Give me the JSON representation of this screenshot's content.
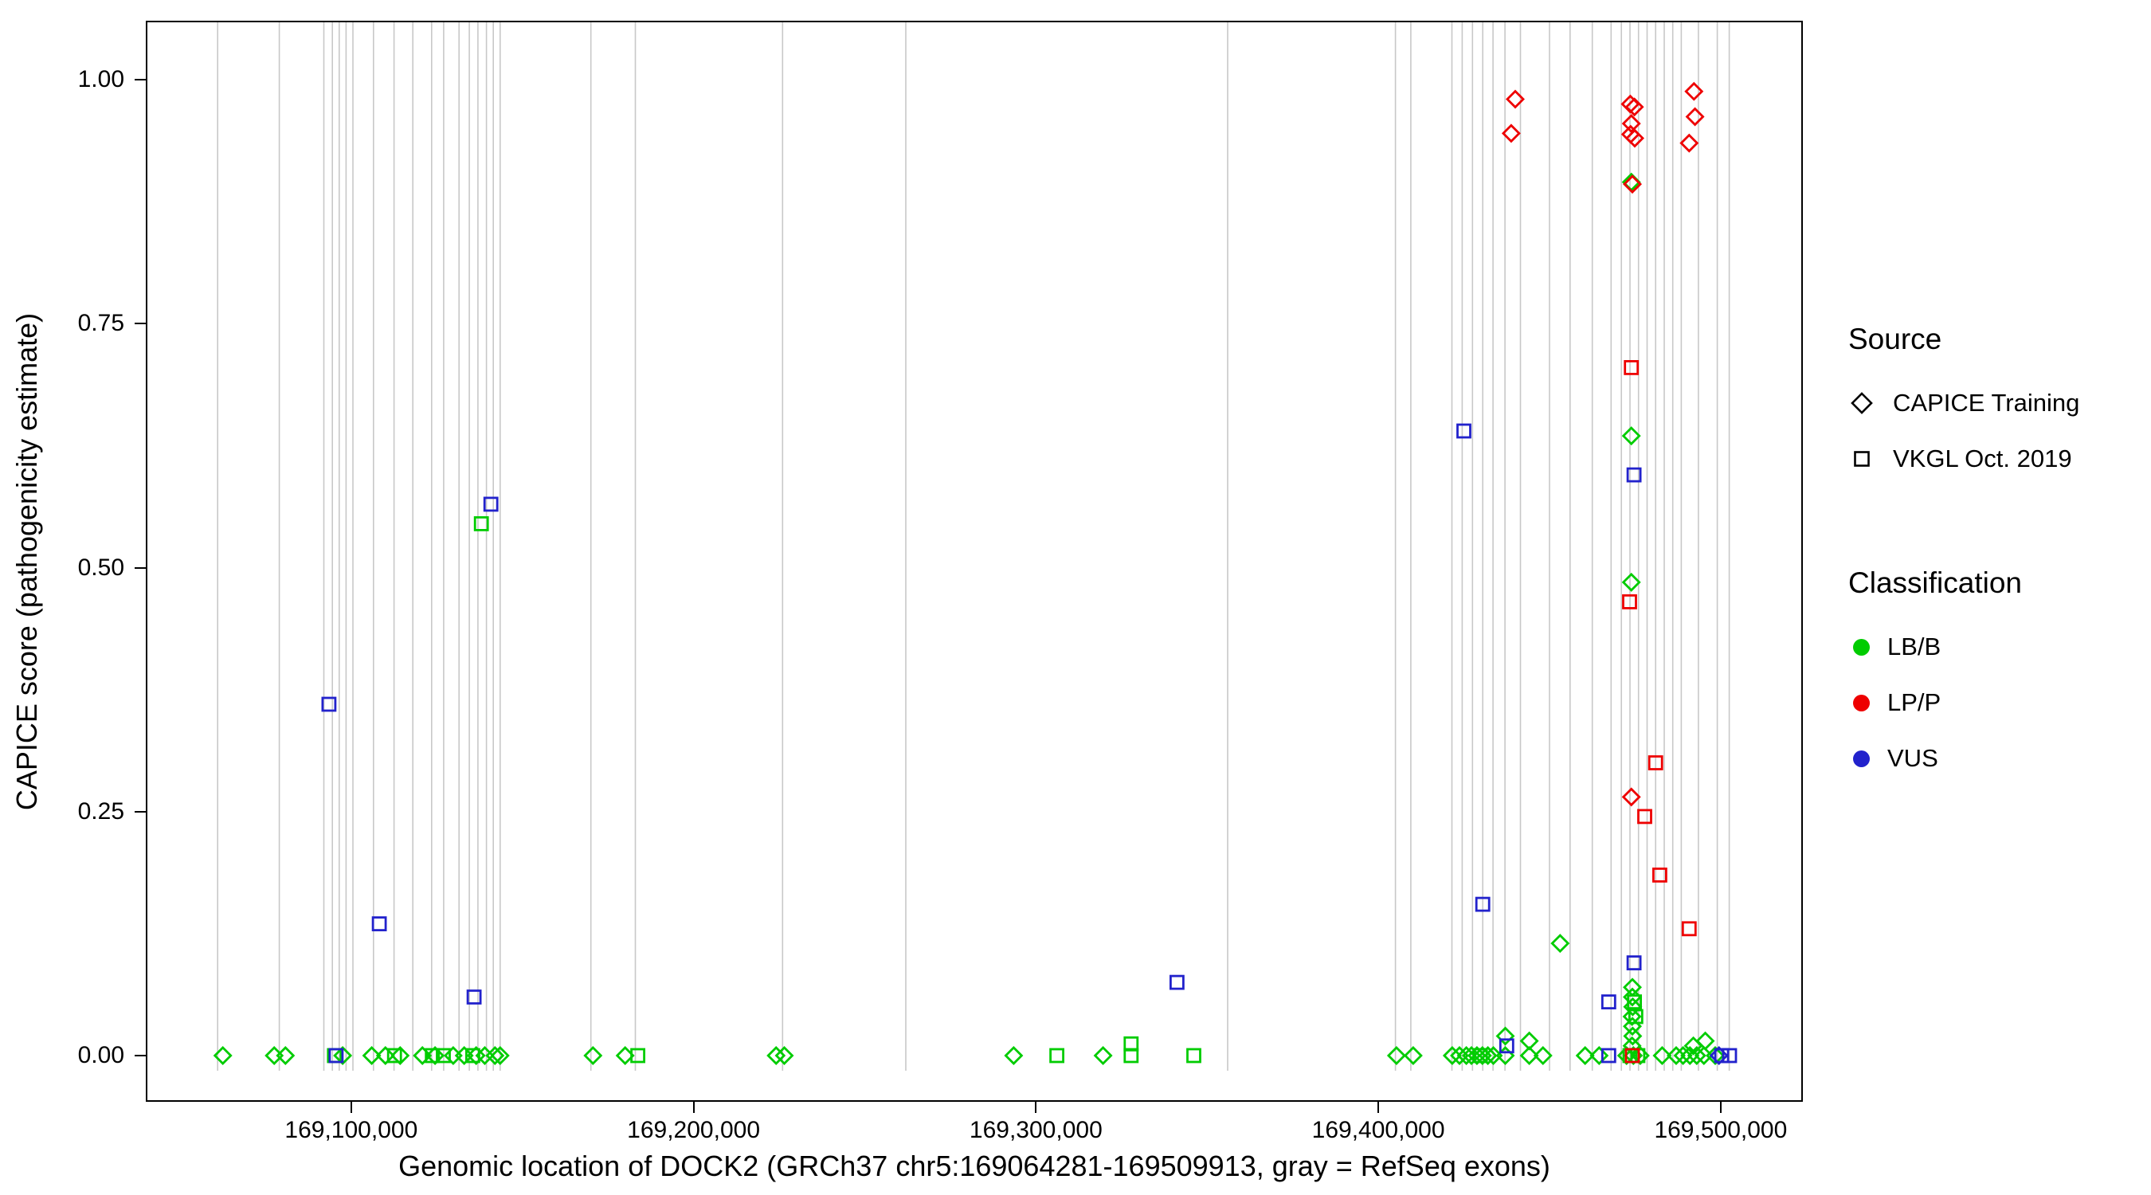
{
  "chart_data": {
    "type": "scatter",
    "title": "",
    "xlabel": "Genomic location of DOCK2 (GRCh37 chr5:169064281-169509913, gray = RefSeq exons)",
    "ylabel": "CAPICE score (pathogenicity estimate)",
    "xlim": [
      169040000,
      169524000
    ],
    "ylim": [
      0,
      1
    ],
    "grid": "off",
    "x_ticks": [
      169100000,
      169200000,
      169300000,
      169400000,
      169500000
    ],
    "x_tick_labels": [
      "169,100,000",
      "169,200,000",
      "169,300,000",
      "169,400,000",
      "169,500,000"
    ],
    "y_ticks": [
      0,
      0.25,
      0.5,
      0.75,
      1
    ],
    "y_tick_labels": [
      "0.00",
      "0.25",
      "0.50",
      "0.75",
      "1.00"
    ],
    "exon_line_color": "#c8c8c8",
    "series_colors": {
      "LB/B": "#00CC00",
      "LP/P": "#EE0000",
      "VUS": "#2222CC"
    },
    "shape_by_source": {
      "CAPICE Training": "diamond",
      "VKGL Oct. 2019": "square"
    },
    "exon_positions": [
      169061000,
      169079000,
      169092000,
      169094500,
      169096500,
      169098500,
      169100500,
      169106500,
      169112500,
      169118000,
      169123500,
      169127000,
      169131500,
      169134500,
      169137000,
      169139500,
      169141500,
      169143500,
      169170000,
      169183000,
      169226000,
      169262000,
      169356000,
      169405000,
      169409500,
      169421500,
      169424500,
      169427500,
      169430500,
      169433500,
      169437000,
      169441500,
      169450000,
      169456000,
      169462500,
      169468000,
      169471000,
      169473500,
      169476000,
      169478500,
      169481000,
      169483500,
      169486000,
      169488500,
      169493500,
      169499000,
      169502500
    ],
    "points": [
      {
        "x": 169062500,
        "y": 0,
        "classification": "LB/B",
        "source": "CAPICE Training"
      },
      {
        "x": 169077500,
        "y": 0,
        "classification": "LB/B",
        "source": "CAPICE Training"
      },
      {
        "x": 169080800,
        "y": 0,
        "classification": "LB/B",
        "source": "CAPICE Training"
      },
      {
        "x": 169097500,
        "y": 0,
        "classification": "LB/B",
        "source": "CAPICE Training"
      },
      {
        "x": 169106000,
        "y": 0,
        "classification": "LB/B",
        "source": "CAPICE Training"
      },
      {
        "x": 169110000,
        "y": 0,
        "classification": "LB/B",
        "source": "CAPICE Training"
      },
      {
        "x": 169114300,
        "y": 0,
        "classification": "LB/B",
        "source": "CAPICE Training"
      },
      {
        "x": 169120800,
        "y": 0,
        "classification": "LB/B",
        "source": "CAPICE Training"
      },
      {
        "x": 169124500,
        "y": 0,
        "classification": "LB/B",
        "source": "CAPICE Training"
      },
      {
        "x": 169129800,
        "y": 0,
        "classification": "LB/B",
        "source": "CAPICE Training"
      },
      {
        "x": 169133000,
        "y": 0,
        "classification": "LB/B",
        "source": "CAPICE Training"
      },
      {
        "x": 169136500,
        "y": 0,
        "classification": "LB/B",
        "source": "CAPICE Training"
      },
      {
        "x": 169139000,
        "y": 0,
        "classification": "LB/B",
        "source": "CAPICE Training"
      },
      {
        "x": 169142000,
        "y": 0,
        "classification": "LB/B",
        "source": "CAPICE Training"
      },
      {
        "x": 169143500,
        "y": 0,
        "classification": "LB/B",
        "source": "CAPICE Training"
      },
      {
        "x": 169170600,
        "y": 0,
        "classification": "LB/B",
        "source": "CAPICE Training"
      },
      {
        "x": 169180000,
        "y": 0,
        "classification": "LB/B",
        "source": "CAPICE Training"
      },
      {
        "x": 169224100,
        "y": 0,
        "classification": "LB/B",
        "source": "CAPICE Training"
      },
      {
        "x": 169226500,
        "y": 0,
        "classification": "LB/B",
        "source": "CAPICE Training"
      },
      {
        "x": 169293500,
        "y": 0,
        "classification": "LB/B",
        "source": "CAPICE Training"
      },
      {
        "x": 169319600,
        "y": 0,
        "classification": "LB/B",
        "source": "CAPICE Training"
      },
      {
        "x": 169405300,
        "y": 0,
        "classification": "LB/B",
        "source": "CAPICE Training"
      },
      {
        "x": 169410200,
        "y": 0,
        "classification": "LB/B",
        "source": "CAPICE Training"
      },
      {
        "x": 169421600,
        "y": 0,
        "classification": "LB/B",
        "source": "CAPICE Training"
      },
      {
        "x": 169423700,
        "y": 0,
        "classification": "LB/B",
        "source": "CAPICE Training"
      },
      {
        "x": 169425700,
        "y": 0,
        "classification": "LB/B",
        "source": "CAPICE Training"
      },
      {
        "x": 169427200,
        "y": 0,
        "classification": "LB/B",
        "source": "CAPICE Training"
      },
      {
        "x": 169428800,
        "y": 0,
        "classification": "LB/B",
        "source": "CAPICE Training"
      },
      {
        "x": 169430400,
        "y": 0,
        "classification": "LB/B",
        "source": "CAPICE Training"
      },
      {
        "x": 169432000,
        "y": 0,
        "classification": "LB/B",
        "source": "CAPICE Training"
      },
      {
        "x": 169433600,
        "y": 0,
        "classification": "LB/B",
        "source": "CAPICE Training"
      },
      {
        "x": 169437100,
        "y": 0,
        "classification": "LB/B",
        "source": "CAPICE Training"
      },
      {
        "x": 169444100,
        "y": 0,
        "classification": "LB/B",
        "source": "CAPICE Training"
      },
      {
        "x": 169448100,
        "y": 0,
        "classification": "LB/B",
        "source": "CAPICE Training"
      },
      {
        "x": 169460400,
        "y": 0,
        "classification": "LB/B",
        "source": "CAPICE Training"
      },
      {
        "x": 169464500,
        "y": 0,
        "classification": "LB/B",
        "source": "CAPICE Training"
      },
      {
        "x": 169472500,
        "y": 0,
        "classification": "LB/B",
        "source": "CAPICE Training"
      },
      {
        "x": 169474500,
        "y": 0,
        "classification": "LB/B",
        "source": "CAPICE Training"
      },
      {
        "x": 169476500,
        "y": 0,
        "classification": "LB/B",
        "source": "CAPICE Training"
      },
      {
        "x": 169482900,
        "y": 0,
        "classification": "LB/B",
        "source": "CAPICE Training"
      },
      {
        "x": 169487000,
        "y": 0,
        "classification": "LB/B",
        "source": "CAPICE Training"
      },
      {
        "x": 169489000,
        "y": 0,
        "classification": "LB/B",
        "source": "CAPICE Training"
      },
      {
        "x": 169491000,
        "y": 0,
        "classification": "LB/B",
        "source": "CAPICE Training"
      },
      {
        "x": 169493000,
        "y": 0,
        "classification": "LB/B",
        "source": "CAPICE Training"
      },
      {
        "x": 169495100,
        "y": 0,
        "classification": "LB/B",
        "source": "CAPICE Training"
      },
      {
        "x": 169498400,
        "y": 0,
        "classification": "LB/B",
        "source": "CAPICE Training"
      },
      {
        "x": 169437100,
        "y": 0.02,
        "classification": "LB/B",
        "source": "CAPICE Training"
      },
      {
        "x": 169444100,
        "y": 0.015,
        "classification": "LB/B",
        "source": "CAPICE Training"
      },
      {
        "x": 169453100,
        "y": 0.115,
        "classification": "LB/B",
        "source": "CAPICE Training"
      },
      {
        "x": 169473900,
        "y": 0.895,
        "classification": "LB/B",
        "source": "CAPICE Training"
      },
      {
        "x": 169473900,
        "y": 0.635,
        "classification": "LB/B",
        "source": "CAPICE Training"
      },
      {
        "x": 169473900,
        "y": 0.485,
        "classification": "LB/B",
        "source": "CAPICE Training"
      },
      {
        "x": 169474200,
        "y": 0.07,
        "classification": "LB/B",
        "source": "CAPICE Training"
      },
      {
        "x": 169474200,
        "y": 0.06,
        "classification": "LB/B",
        "source": "CAPICE Training"
      },
      {
        "x": 169474300,
        "y": 0.05,
        "classification": "LB/B",
        "source": "CAPICE Training"
      },
      {
        "x": 169474100,
        "y": 0.04,
        "classification": "LB/B",
        "source": "CAPICE Training"
      },
      {
        "x": 169474200,
        "y": 0.03,
        "classification": "LB/B",
        "source": "CAPICE Training"
      },
      {
        "x": 169474300,
        "y": 0.02,
        "classification": "LB/B",
        "source": "CAPICE Training"
      },
      {
        "x": 169474100,
        "y": 0.01,
        "classification": "LB/B",
        "source": "CAPICE Training"
      },
      {
        "x": 169492000,
        "y": 0.01,
        "classification": "LB/B",
        "source": "CAPICE Training"
      },
      {
        "x": 169495500,
        "y": 0.015,
        "classification": "LB/B",
        "source": "CAPICE Training"
      },
      {
        "x": 169138000,
        "y": 0.545,
        "classification": "LB/B",
        "source": "VKGL Oct. 2019"
      },
      {
        "x": 169095100,
        "y": 0,
        "classification": "LB/B",
        "source": "VKGL Oct. 2019"
      },
      {
        "x": 169112650,
        "y": 0,
        "classification": "LB/B",
        "source": "VKGL Oct. 2019"
      },
      {
        "x": 169123700,
        "y": 0,
        "classification": "LB/B",
        "source": "VKGL Oct. 2019"
      },
      {
        "x": 169126900,
        "y": 0,
        "classification": "LB/B",
        "source": "VKGL Oct. 2019"
      },
      {
        "x": 169135500,
        "y": 0,
        "classification": "LB/B",
        "source": "VKGL Oct. 2019"
      },
      {
        "x": 169183700,
        "y": 0,
        "classification": "LB/B",
        "source": "VKGL Oct. 2019"
      },
      {
        "x": 169306100,
        "y": 0,
        "classification": "LB/B",
        "source": "VKGL Oct. 2019"
      },
      {
        "x": 169327800,
        "y": 0.012,
        "classification": "LB/B",
        "source": "VKGL Oct. 2019"
      },
      {
        "x": 169327800,
        "y": 0,
        "classification": "LB/B",
        "source": "VKGL Oct. 2019"
      },
      {
        "x": 169346100,
        "y": 0,
        "classification": "LB/B",
        "source": "VKGL Oct. 2019"
      },
      {
        "x": 169429800,
        "y": 0,
        "classification": "LB/B",
        "source": "VKGL Oct. 2019"
      },
      {
        "x": 169474800,
        "y": 0.055,
        "classification": "LB/B",
        "source": "VKGL Oct. 2019"
      },
      {
        "x": 169475200,
        "y": 0.04,
        "classification": "LB/B",
        "source": "VKGL Oct. 2019"
      },
      {
        "x": 169473500,
        "y": 0,
        "classification": "LB/B",
        "source": "VKGL Oct. 2019"
      },
      {
        "x": 169475800,
        "y": 0,
        "classification": "LB/B",
        "source": "VKGL Oct. 2019"
      },
      {
        "x": 169093500,
        "y": 0.36,
        "classification": "VUS",
        "source": "VKGL Oct. 2019"
      },
      {
        "x": 169108200,
        "y": 0.135,
        "classification": "VUS",
        "source": "VKGL Oct. 2019"
      },
      {
        "x": 169140800,
        "y": 0.565,
        "classification": "VUS",
        "source": "VKGL Oct. 2019"
      },
      {
        "x": 169135900,
        "y": 0.06,
        "classification": "VUS",
        "source": "VKGL Oct. 2019"
      },
      {
        "x": 169341200,
        "y": 0.075,
        "classification": "VUS",
        "source": "VKGL Oct. 2019"
      },
      {
        "x": 169425000,
        "y": 0.64,
        "classification": "VUS",
        "source": "VKGL Oct. 2019"
      },
      {
        "x": 169430500,
        "y": 0.155,
        "classification": "VUS",
        "source": "VKGL Oct. 2019"
      },
      {
        "x": 169474700,
        "y": 0.595,
        "classification": "VUS",
        "source": "VKGL Oct. 2019"
      },
      {
        "x": 169474700,
        "y": 0.095,
        "classification": "VUS",
        "source": "VKGL Oct. 2019"
      },
      {
        "x": 169467300,
        "y": 0.055,
        "classification": "VUS",
        "source": "VKGL Oct. 2019"
      },
      {
        "x": 169095600,
        "y": 0,
        "classification": "VUS",
        "source": "VKGL Oct. 2019"
      },
      {
        "x": 169437500,
        "y": 0.01,
        "classification": "VUS",
        "source": "VKGL Oct. 2019"
      },
      {
        "x": 169467300,
        "y": 0,
        "classification": "VUS",
        "source": "VKGL Oct. 2019"
      },
      {
        "x": 169500300,
        "y": 0,
        "classification": "VUS",
        "source": "VKGL Oct. 2019"
      },
      {
        "x": 169502600,
        "y": 0,
        "classification": "VUS",
        "source": "VKGL Oct. 2019"
      },
      {
        "x": 169499500,
        "y": 0,
        "classification": "VUS",
        "source": "CAPICE Training"
      },
      {
        "x": 169440000,
        "y": 0.98,
        "classification": "LP/P",
        "source": "CAPICE Training"
      },
      {
        "x": 169438800,
        "y": 0.945,
        "classification": "LP/P",
        "source": "CAPICE Training"
      },
      {
        "x": 169473600,
        "y": 0.975,
        "classification": "LP/P",
        "source": "CAPICE Training"
      },
      {
        "x": 169474800,
        "y": 0.972,
        "classification": "LP/P",
        "source": "CAPICE Training"
      },
      {
        "x": 169473900,
        "y": 0.955,
        "classification": "LP/P",
        "source": "CAPICE Training"
      },
      {
        "x": 169473700,
        "y": 0.944,
        "classification": "LP/P",
        "source": "CAPICE Training"
      },
      {
        "x": 169474900,
        "y": 0.94,
        "classification": "LP/P",
        "source": "CAPICE Training"
      },
      {
        "x": 169474200,
        "y": 0.893,
        "classification": "LP/P",
        "source": "CAPICE Training"
      },
      {
        "x": 169492200,
        "y": 0.988,
        "classification": "LP/P",
        "source": "CAPICE Training"
      },
      {
        "x": 169492500,
        "y": 0.962,
        "classification": "LP/P",
        "source": "CAPICE Training"
      },
      {
        "x": 169490800,
        "y": 0.935,
        "classification": "LP/P",
        "source": "CAPICE Training"
      },
      {
        "x": 169473900,
        "y": 0.265,
        "classification": "LP/P",
        "source": "CAPICE Training"
      },
      {
        "x": 169473900,
        "y": 0.705,
        "classification": "LP/P",
        "source": "VKGL Oct. 2019"
      },
      {
        "x": 169473400,
        "y": 0.465,
        "classification": "LP/P",
        "source": "VKGL Oct. 2019"
      },
      {
        "x": 169481000,
        "y": 0.3,
        "classification": "LP/P",
        "source": "VKGL Oct. 2019"
      },
      {
        "x": 169477800,
        "y": 0.245,
        "classification": "LP/P",
        "source": "VKGL Oct. 2019"
      },
      {
        "x": 169482200,
        "y": 0.185,
        "classification": "LP/P",
        "source": "VKGL Oct. 2019"
      },
      {
        "x": 169490800,
        "y": 0.13,
        "classification": "LP/P",
        "source": "VKGL Oct. 2019"
      },
      {
        "x": 169474200,
        "y": 0,
        "classification": "LP/P",
        "source": "VKGL Oct. 2019"
      }
    ]
  },
  "legend": {
    "source": {
      "title": "Source",
      "items": [
        {
          "label": "CAPICE Training",
          "shape": "diamond"
        },
        {
          "label": "VKGL Oct. 2019",
          "shape": "square"
        }
      ]
    },
    "classification": {
      "title": "Classification",
      "items": [
        {
          "label": "LB/B",
          "color": "#00CC00"
        },
        {
          "label": "LP/P",
          "color": "#EE0000"
        },
        {
          "label": "VUS",
          "color": "#2222CC"
        }
      ]
    }
  }
}
